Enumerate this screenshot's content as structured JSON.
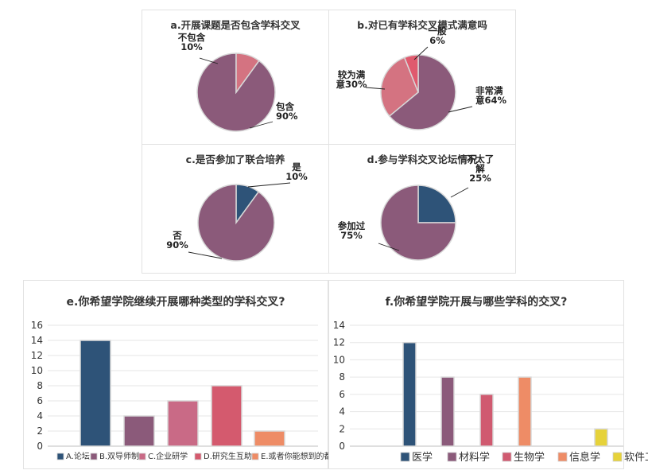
{
  "chart_data": [
    {
      "type": "pie",
      "title": "a.开展课题是否包含学科交叉",
      "categories": [
        "包含",
        "不包含"
      ],
      "values": [
        90,
        10
      ],
      "labels": [
        [
          "包含",
          "90%"
        ],
        [
          "不包含",
          "10%"
        ]
      ],
      "colors": [
        "#8B5A7A",
        "#D47381"
      ]
    },
    {
      "type": "pie",
      "title": "b.对已有学科交叉模式满意吗",
      "categories": [
        "非常满意",
        "较为满意",
        "一般"
      ],
      "values": [
        64,
        30,
        6
      ],
      "labels": [
        [
          "非常满",
          "意64%"
        ],
        [
          "较为满",
          "意30%"
        ],
        [
          "一般",
          "6%"
        ]
      ],
      "colors": [
        "#8B5A7A",
        "#D47381",
        "#E05A6E"
      ]
    },
    {
      "type": "pie",
      "title": "c.是否参加了联合培养",
      "categories": [
        "是",
        "否"
      ],
      "values": [
        10,
        90
      ],
      "labels": [
        [
          "是",
          "10%"
        ],
        [
          "否",
          "90%"
        ]
      ],
      "colors": [
        "#2E5378",
        "#8B5A7A"
      ]
    },
    {
      "type": "pie",
      "title": "d.参与学科交叉论坛情况",
      "categories": [
        "不太了解",
        "参加过"
      ],
      "values": [
        25,
        75
      ],
      "labels": [
        [
          "不太了",
          "解",
          "25%"
        ],
        [
          "参加过",
          "75%"
        ]
      ],
      "colors": [
        "#2E5378",
        "#8B5A7A"
      ]
    },
    {
      "type": "bar",
      "title": "e.你希望学院继续开展哪种类型的学科交叉?",
      "categories": [
        "A.论坛",
        "B.双导师制",
        "C.企业研学",
        "D.研究生互助",
        "E.或者你能想到的都行"
      ],
      "values": [
        14,
        4,
        6,
        8,
        2
      ],
      "colors": [
        "#2E5378",
        "#8B5A7A",
        "#C96A86",
        "#D45A6E",
        "#EE8C66"
      ],
      "ylim": [
        0,
        16
      ],
      "yticks": [
        "0",
        "2",
        "4",
        "6",
        "8",
        "10",
        "12",
        "14",
        "16"
      ],
      "legend": "bottom"
    },
    {
      "type": "bar",
      "title": "f.你希望学院开展与哪些学科的交叉?",
      "categories": [
        "医学",
        "材料学",
        "生物学",
        "信息学",
        "软件工程"
      ],
      "values": [
        12,
        8,
        6,
        8,
        2
      ],
      "colors": [
        "#2E5378",
        "#8B5A7A",
        "#D05A70",
        "#EE8C66",
        "#E6D23A"
      ],
      "ylim": [
        0,
        14
      ],
      "yticks": [
        "0",
        "2",
        "4",
        "6",
        "8",
        "10",
        "12",
        "14"
      ],
      "legend": "bottom"
    }
  ]
}
